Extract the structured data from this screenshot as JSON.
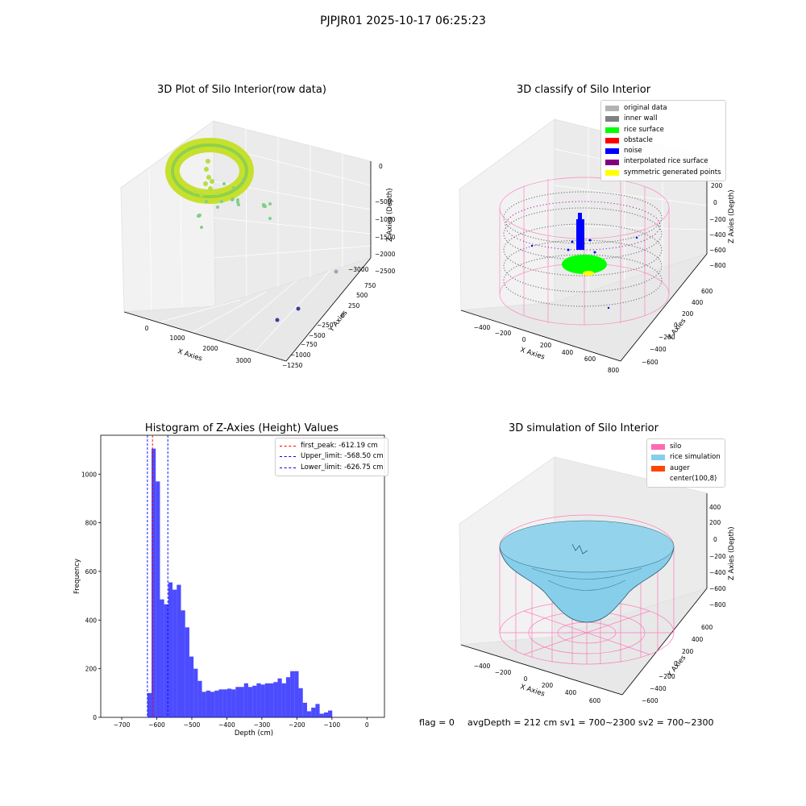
{
  "suptitle": "PJPJR01 2025-10-17 06:25:23",
  "panel1": {
    "title": "3D Plot of Silo Interior(row data)",
    "xlabel": "X Axies",
    "ylabel": "Y Axies",
    "zlabel": "Z Axies (Depth)",
    "xticks": [
      "0",
      "1000",
      "2000",
      "3000"
    ],
    "yticks": [
      "750",
      "500",
      "250",
      "0",
      "−250",
      "−500",
      "−750",
      "−1000",
      "−1250"
    ],
    "zticks": [
      "0",
      "−500",
      "−1000",
      "−1500",
      "−2000",
      "−2500",
      "−3000"
    ],
    "colors": {
      "point_yellow": "#d6e52a",
      "point_green": "#7fd08a",
      "point_blue": "#3b3f99"
    }
  },
  "panel2": {
    "title": "3D classify of Silo Interior",
    "xlabel": "X Axies",
    "ylabel": "Y Axies",
    "zlabel": "Z Axies (Depth)",
    "xticks": [
      "−400",
      "−200",
      "0",
      "200",
      "400",
      "600",
      "800"
    ],
    "yticks": [
      "600",
      "400",
      "200",
      "0",
      "−200",
      "−400",
      "−600"
    ],
    "zticks": [
      "200",
      "0",
      "−200",
      "−400",
      "−600",
      "−800"
    ],
    "legend": [
      {
        "label": "original data",
        "color": "#b3b3b3"
      },
      {
        "label": "inner wall",
        "color": "#808080"
      },
      {
        "label": "rice surface",
        "color": "#00ff00"
      },
      {
        "label": "obstacle",
        "color": "#ff0000"
      },
      {
        "label": "noise",
        "color": "#0000ff"
      },
      {
        "label": "interpolated rice surface",
        "color": "#800080"
      },
      {
        "label": "symmetric generated points",
        "color": "#ffff00"
      }
    ]
  },
  "panel3": {
    "title": "3D simulation of Silo Interior",
    "xlabel": "X Axies",
    "ylabel": "Y Axies",
    "zlabel": "Z Axies (Depth)",
    "xticks": [
      "−400",
      "−200",
      "0",
      "200",
      "400",
      "600"
    ],
    "yticks": [
      "600",
      "400",
      "200",
      "0",
      "−200",
      "−400",
      "−600"
    ],
    "zticks": [
      "400",
      "200",
      "0",
      "−200",
      "−400",
      "−600",
      "−800"
    ],
    "legend": [
      {
        "label": "silo",
        "color": "#ff69b4"
      },
      {
        "label": "rice simulation",
        "color": "#87ceeb"
      },
      {
        "label": "auger",
        "color": "#ff4500"
      },
      {
        "label": "center(100,8)",
        "color": ""
      }
    ]
  },
  "footer": {
    "flag": "flag = 0",
    "avg": "avgDepth = 212 cm  sv1 = 700~2300  sv2 = 700~2300"
  },
  "chart_data": [
    {
      "type": "histogram",
      "title": "Histogram of Z-Axies (Height) Values",
      "xlabel": "Depth (cm)",
      "ylabel": "Frequency",
      "xlim": [
        -760,
        50
      ],
      "ylim": [
        0,
        1160
      ],
      "xticks": [
        -700,
        -600,
        -500,
        -400,
        -300,
        -200,
        -100,
        0
      ],
      "yticks": [
        0,
        200,
        400,
        600,
        800,
        1000
      ],
      "bar_color": "#0000ff",
      "bins": [
        {
          "x0": -627,
          "x1": -615,
          "count": 100
        },
        {
          "x0": -615,
          "x1": -603,
          "count": 1105
        },
        {
          "x0": -603,
          "x1": -591,
          "count": 970
        },
        {
          "x0": -591,
          "x1": -579,
          "count": 485
        },
        {
          "x0": -579,
          "x1": -567,
          "count": 465
        },
        {
          "x0": -567,
          "x1": -555,
          "count": 555
        },
        {
          "x0": -555,
          "x1": -543,
          "count": 525
        },
        {
          "x0": -543,
          "x1": -531,
          "count": 545
        },
        {
          "x0": -531,
          "x1": -519,
          "count": 440
        },
        {
          "x0": -519,
          "x1": -507,
          "count": 370
        },
        {
          "x0": -507,
          "x1": -495,
          "count": 250
        },
        {
          "x0": -495,
          "x1": -483,
          "count": 200
        },
        {
          "x0": -483,
          "x1": -471,
          "count": 150
        },
        {
          "x0": -471,
          "x1": -459,
          "count": 105
        },
        {
          "x0": -459,
          "x1": -447,
          "count": 110
        },
        {
          "x0": -447,
          "x1": -435,
          "count": 105
        },
        {
          "x0": -435,
          "x1": -423,
          "count": 110
        },
        {
          "x0": -423,
          "x1": -411,
          "count": 115
        },
        {
          "x0": -411,
          "x1": -399,
          "count": 115
        },
        {
          "x0": -399,
          "x1": -387,
          "count": 118
        },
        {
          "x0": -387,
          "x1": -375,
          "count": 115
        },
        {
          "x0": -375,
          "x1": -363,
          "count": 125
        },
        {
          "x0": -363,
          "x1": -351,
          "count": 125
        },
        {
          "x0": -351,
          "x1": -339,
          "count": 140
        },
        {
          "x0": -339,
          "x1": -327,
          "count": 125
        },
        {
          "x0": -327,
          "x1": -315,
          "count": 130
        },
        {
          "x0": -315,
          "x1": -303,
          "count": 140
        },
        {
          "x0": -303,
          "x1": -291,
          "count": 135
        },
        {
          "x0": -291,
          "x1": -279,
          "count": 140
        },
        {
          "x0": -279,
          "x1": -267,
          "count": 140
        },
        {
          "x0": -267,
          "x1": -255,
          "count": 145
        },
        {
          "x0": -255,
          "x1": -243,
          "count": 160
        },
        {
          "x0": -243,
          "x1": -231,
          "count": 140
        },
        {
          "x0": -231,
          "x1": -219,
          "count": 165
        },
        {
          "x0": -219,
          "x1": -207,
          "count": 190
        },
        {
          "x0": -207,
          "x1": -195,
          "count": 190
        },
        {
          "x0": -195,
          "x1": -183,
          "count": 120
        },
        {
          "x0": -183,
          "x1": -171,
          "count": 60
        },
        {
          "x0": -171,
          "x1": -159,
          "count": 25
        },
        {
          "x0": -159,
          "x1": -147,
          "count": 40
        },
        {
          "x0": -147,
          "x1": -135,
          "count": 55
        },
        {
          "x0": -135,
          "x1": -123,
          "count": 15
        },
        {
          "x0": -123,
          "x1": -111,
          "count": 20
        },
        {
          "x0": -111,
          "x1": -99,
          "count": 28
        }
      ],
      "vlines": [
        {
          "label": "first_peak: -612.19 cm",
          "x": -612.19,
          "color": "#ff0000"
        },
        {
          "label": "Upper_limit: -568.50 cm",
          "x": -568.5,
          "color": "#0000ff"
        },
        {
          "label": "Lower_limit: -626.75 cm",
          "x": -626.75,
          "color": "#0000ff"
        }
      ],
      "legend_position": "top-right"
    }
  ]
}
